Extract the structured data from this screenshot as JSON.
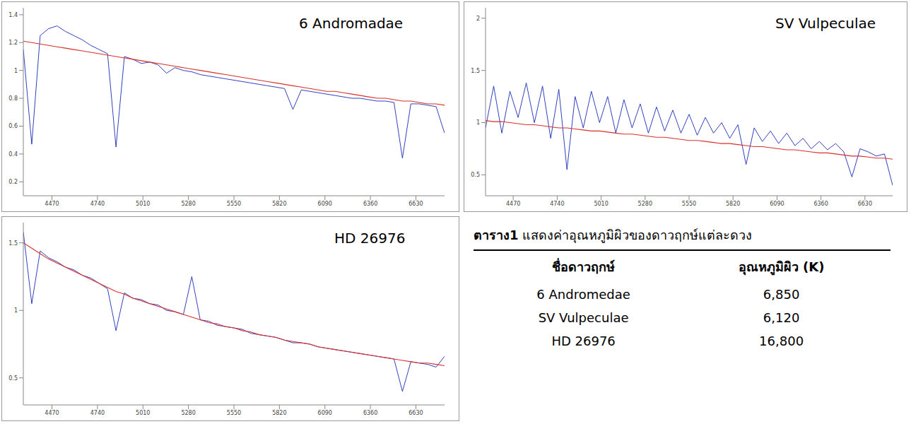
{
  "chart_data": [
    {
      "type": "line",
      "title": "6 Andromadae",
      "grid": false,
      "x": [
        4300,
        4350,
        4400,
        4450,
        4500,
        4550,
        4600,
        4650,
        4700,
        4750,
        4800,
        4850,
        4900,
        4950,
        5000,
        5050,
        5100,
        5150,
        5200,
        5250,
        5300,
        5350,
        5400,
        5450,
        5500,
        5550,
        5600,
        5650,
        5700,
        5750,
        5800,
        5850,
        5900,
        5950,
        6000,
        6050,
        6100,
        6150,
        6200,
        6250,
        6300,
        6350,
        6400,
        6450,
        6500,
        6550,
        6600,
        6650,
        6700,
        6750,
        6800
      ],
      "xlim": [
        4300,
        6800
      ],
      "xticks": [
        4470,
        4740,
        5010,
        5280,
        5550,
        5820,
        6090,
        6360,
        6630
      ],
      "ylim": [
        0.1,
        1.45
      ],
      "yticks": [
        0.2,
        0.4,
        0.6,
        0.8,
        1,
        1.2,
        1.4
      ],
      "series": [
        {
          "color": "#1a2bb8",
          "values": [
            1.15,
            0.47,
            1.25,
            1.3,
            1.32,
            1.28,
            1.25,
            1.22,
            1.18,
            1.15,
            1.12,
            0.45,
            1.1,
            1.08,
            1.05,
            1.06,
            1.04,
            0.98,
            1.02,
            1.0,
            0.99,
            0.97,
            0.96,
            0.95,
            0.94,
            0.93,
            0.92,
            0.91,
            0.9,
            0.89,
            0.88,
            0.87,
            0.72,
            0.86,
            0.85,
            0.84,
            0.83,
            0.82,
            0.81,
            0.8,
            0.8,
            0.79,
            0.78,
            0.78,
            0.77,
            0.37,
            0.76,
            0.76,
            0.75,
            0.74,
            0.55
          ]
        },
        {
          "color": "#d9302c",
          "values": [
            1.21,
            1.2,
            1.19,
            1.18,
            1.17,
            1.16,
            1.15,
            1.14,
            1.13,
            1.12,
            1.11,
            1.1,
            1.09,
            1.08,
            1.07,
            1.06,
            1.05,
            1.04,
            1.03,
            1.02,
            1.01,
            1.0,
            0.99,
            0.98,
            0.97,
            0.96,
            0.95,
            0.94,
            0.93,
            0.92,
            0.91,
            0.9,
            0.89,
            0.88,
            0.87,
            0.86,
            0.85,
            0.85,
            0.84,
            0.83,
            0.82,
            0.81,
            0.8,
            0.8,
            0.79,
            0.78,
            0.78,
            0.77,
            0.76,
            0.76,
            0.75
          ]
        }
      ]
    },
    {
      "type": "line",
      "title": "SV Vulpeculae",
      "grid": false,
      "x": [
        4300,
        4350,
        4400,
        4450,
        4500,
        4550,
        4600,
        4650,
        4700,
        4750,
        4800,
        4850,
        4900,
        4950,
        5000,
        5050,
        5100,
        5150,
        5200,
        5250,
        5300,
        5350,
        5400,
        5450,
        5500,
        5550,
        5600,
        5650,
        5700,
        5750,
        5800,
        5850,
        5900,
        5950,
        6000,
        6050,
        6100,
        6150,
        6200,
        6250,
        6300,
        6350,
        6400,
        6450,
        6500,
        6550,
        6600,
        6650,
        6700,
        6750,
        6800
      ],
      "xlim": [
        4300,
        6800
      ],
      "xticks": [
        4470,
        4740,
        5010,
        5280,
        5550,
        5820,
        6090,
        6360,
        6630
      ],
      "ylim": [
        0.3,
        2.1
      ],
      "yticks": [
        0.5,
        1,
        1.5,
        2
      ],
      "series": [
        {
          "color": "#1a2bb8",
          "values": [
            0.95,
            1.35,
            0.9,
            1.3,
            1.05,
            1.38,
            1.0,
            1.35,
            0.85,
            1.32,
            0.55,
            1.25,
            0.95,
            1.3,
            1.0,
            1.25,
            0.9,
            1.22,
            0.95,
            1.18,
            0.9,
            1.15,
            0.92,
            1.12,
            0.9,
            1.08,
            0.88,
            1.05,
            0.9,
            1.0,
            0.85,
            0.98,
            0.6,
            0.95,
            0.82,
            0.92,
            0.8,
            0.9,
            0.78,
            0.85,
            0.75,
            0.82,
            0.74,
            0.8,
            0.72,
            0.48,
            0.75,
            0.72,
            0.68,
            0.7,
            0.4
          ]
        },
        {
          "color": "#d9302c",
          "values": [
            1.02,
            1.01,
            1.01,
            1.0,
            0.99,
            0.98,
            0.98,
            0.97,
            0.96,
            0.95,
            0.95,
            0.94,
            0.93,
            0.92,
            0.92,
            0.91,
            0.9,
            0.89,
            0.89,
            0.88,
            0.87,
            0.86,
            0.86,
            0.85,
            0.84,
            0.83,
            0.83,
            0.82,
            0.81,
            0.8,
            0.8,
            0.79,
            0.78,
            0.77,
            0.77,
            0.76,
            0.75,
            0.74,
            0.74,
            0.73,
            0.72,
            0.71,
            0.71,
            0.7,
            0.69,
            0.68,
            0.68,
            0.67,
            0.66,
            0.66,
            0.65
          ]
        }
      ]
    },
    {
      "type": "line",
      "title": "HD 26976",
      "grid": false,
      "x": [
        4300,
        4350,
        4400,
        4450,
        4500,
        4550,
        4600,
        4650,
        4700,
        4750,
        4800,
        4850,
        4900,
        4950,
        5000,
        5050,
        5100,
        5150,
        5200,
        5250,
        5300,
        5350,
        5400,
        5450,
        5500,
        5550,
        5600,
        5650,
        5700,
        5750,
        5800,
        5850,
        5900,
        5950,
        6000,
        6050,
        6100,
        6150,
        6200,
        6250,
        6300,
        6350,
        6400,
        6450,
        6500,
        6550,
        6600,
        6650,
        6700,
        6750,
        6800
      ],
      "xlim": [
        4300,
        6800
      ],
      "xticks": [
        4470,
        4740,
        5010,
        5280,
        5550,
        5820,
        6090,
        6360,
        6630
      ],
      "ylim": [
        0.3,
        1.65
      ],
      "yticks": [
        0.5,
        1,
        1.5
      ],
      "series": [
        {
          "color": "#1a2bb8",
          "values": [
            1.58,
            1.05,
            1.44,
            1.39,
            1.36,
            1.32,
            1.3,
            1.26,
            1.24,
            1.2,
            1.16,
            0.85,
            1.13,
            1.09,
            1.08,
            1.05,
            1.04,
            1.0,
            0.99,
            0.97,
            1.25,
            0.93,
            0.92,
            0.89,
            0.88,
            0.87,
            0.86,
            0.83,
            0.82,
            0.81,
            0.8,
            0.78,
            0.76,
            0.76,
            0.75,
            0.73,
            0.72,
            0.71,
            0.7,
            0.69,
            0.68,
            0.67,
            0.66,
            0.65,
            0.64,
            0.4,
            0.62,
            0.61,
            0.6,
            0.58,
            0.66
          ]
        },
        {
          "color": "#d9302c",
          "values": [
            1.5,
            1.46,
            1.42,
            1.38,
            1.35,
            1.32,
            1.29,
            1.26,
            1.23,
            1.2,
            1.17,
            1.14,
            1.12,
            1.09,
            1.07,
            1.05,
            1.03,
            1.01,
            0.99,
            0.97,
            0.95,
            0.93,
            0.91,
            0.9,
            0.88,
            0.87,
            0.85,
            0.84,
            0.82,
            0.81,
            0.8,
            0.78,
            0.77,
            0.76,
            0.75,
            0.73,
            0.72,
            0.71,
            0.7,
            0.69,
            0.68,
            0.67,
            0.66,
            0.65,
            0.64,
            0.63,
            0.62,
            0.61,
            0.61,
            0.6,
            0.59
          ]
        }
      ]
    }
  ],
  "table": {
    "caption_label": "ตาราง1",
    "caption": "แสดงค่าอุณหภูมิผิวของดาวฤกษ์แต่ละดวง",
    "columns": [
      "ชื่อดาวฤกษ์",
      "อุณหภูมิผิว (K)"
    ],
    "rows": [
      [
        "6 Andromedae",
        "6,850"
      ],
      [
        "SV Vulpeculae",
        "6,120"
      ],
      [
        "HD 26976",
        "16,800"
      ]
    ]
  }
}
